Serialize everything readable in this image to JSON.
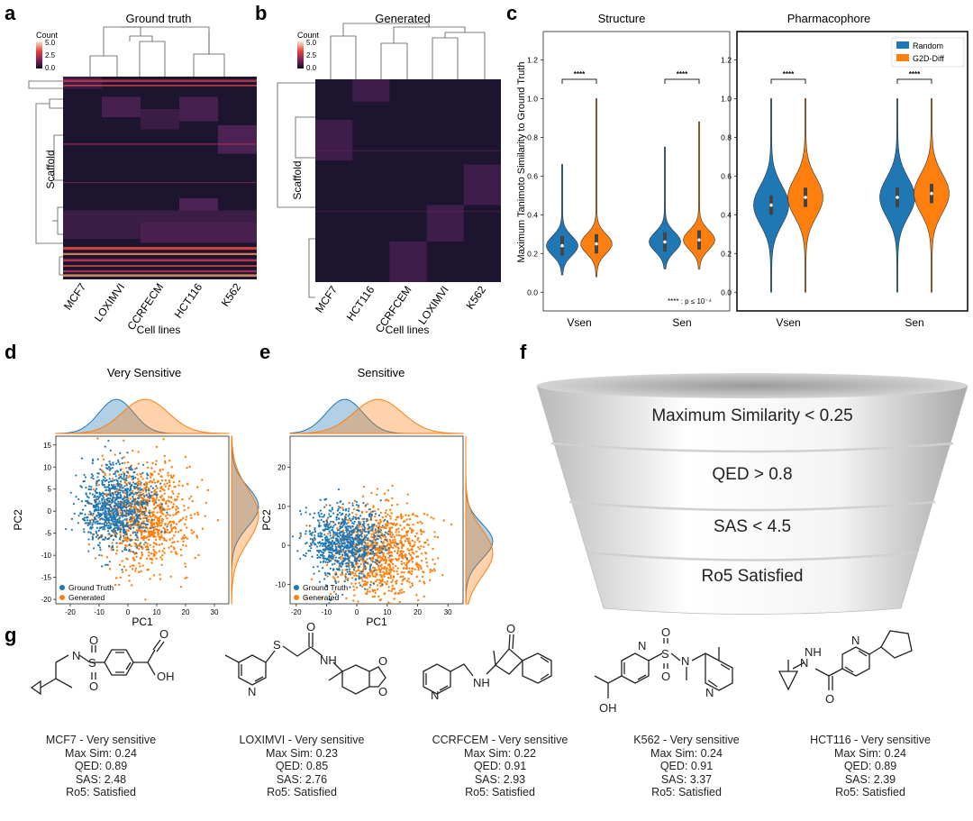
{
  "panel_letters": {
    "a": "a",
    "b": "b",
    "c": "c",
    "d": "d",
    "e": "e",
    "f": "f",
    "g": "g"
  },
  "colors": {
    "heat_dark": "#1d1530",
    "heat_mid": "#4a2050",
    "heat_hot": "#e8433a",
    "random": "#1f77b4",
    "g2d": "#ff7f0e",
    "gt_point": "#1f77b4",
    "gen_point": "#ff7f0e"
  },
  "heatmap_a": {
    "title": "Ground truth",
    "xlabel": "Cell lines",
    "ylabel": "Scaffold",
    "cell_lines": [
      "MCF7",
      "LOXIMVI",
      "CCRFECM",
      "HCT116",
      "K562"
    ],
    "colorbar": {
      "label": "Count",
      "ticks": [
        "5.0",
        "2.5",
        "0.0"
      ]
    }
  },
  "heatmap_b": {
    "title": "Generated",
    "xlabel": "Cell lines",
    "ylabel": "Scaffold",
    "cell_lines": [
      "MCF7",
      "HCT116",
      "CCRFCEM",
      "LOXIMVI",
      "K562"
    ],
    "colorbar": {
      "label": "Count",
      "ticks": [
        "5.0",
        "2.5",
        "0.0"
      ]
    }
  },
  "chart_data": [
    {
      "type": "violin",
      "title": "Structure",
      "ylabel": "Maximum Tanimoto Similarity to Ground Truth",
      "categories": [
        "Vsen",
        "Sen"
      ],
      "yticks": [
        "0.0",
        "0.2",
        "0.4",
        "0.6",
        "0.8",
        "1.0",
        "1.2"
      ],
      "ylim": [
        -0.05,
        1.3
      ],
      "series": [
        {
          "name": "Random",
          "medians": [
            0.24,
            0.26
          ],
          "min": [
            0.09,
            0.12
          ],
          "max": [
            0.66,
            0.75
          ]
        },
        {
          "name": "G2D-Diff",
          "medians": [
            0.25,
            0.27
          ],
          "min": [
            0.08,
            0.12
          ],
          "max": [
            1.0,
            0.88
          ]
        }
      ],
      "significance": [
        "****",
        "****"
      ],
      "annotation": "**** : p ≤ 10⁻⁴"
    },
    {
      "type": "violin",
      "title": "Pharmacophore",
      "categories": [
        "Vsen",
        "Sen"
      ],
      "yticks": [
        "0.0",
        "0.2",
        "0.4",
        "0.6",
        "0.8",
        "1.0",
        "1.2"
      ],
      "ylim": [
        -0.05,
        1.3
      ],
      "series": [
        {
          "name": "Random",
          "medians": [
            0.45,
            0.49
          ],
          "min": [
            0.0,
            0.0
          ],
          "max": [
            1.0,
            1.0
          ]
        },
        {
          "name": "G2D-Diff",
          "medians": [
            0.49,
            0.51
          ],
          "min": [
            0.0,
            0.0
          ],
          "max": [
            1.0,
            1.0
          ]
        }
      ],
      "significance": [
        "****",
        "****"
      ],
      "legend": [
        "Random",
        "G2D-Diff"
      ]
    },
    {
      "type": "scatter",
      "title": "Very Sensitive",
      "xlabel": "PC1",
      "ylabel": "PC2",
      "xticks": [
        "-20",
        "-10",
        "0",
        "10",
        "20",
        "30"
      ],
      "yticks": [
        "-20",
        "-15",
        "-10",
        "-5",
        "0",
        "5",
        "10",
        "15"
      ],
      "xlim": [
        -25,
        35
      ],
      "ylim": [
        -21,
        17
      ],
      "legend": [
        "Ground Truth",
        "Generated"
      ]
    },
    {
      "type": "scatter",
      "title": "Sensitive",
      "xlabel": "PC1",
      "ylabel": "PC2",
      "xticks": [
        "-20",
        "-10",
        "0",
        "10",
        "20",
        "30"
      ],
      "yticks": [
        "-10",
        "0",
        "10",
        "20"
      ],
      "xlim": [
        -22,
        35
      ],
      "ylim": [
        -15,
        28
      ],
      "legend": [
        "Ground Truth",
        "Generated"
      ]
    }
  ],
  "funnel": {
    "levels": [
      {
        "metric": "Maximum Similarity",
        "op": "<",
        "value": "0.25"
      },
      {
        "metric": "QED",
        "op": ">",
        "value": "0.8"
      },
      {
        "metric": "SAS",
        "op": "<",
        "value": "4.5"
      },
      {
        "metric": "Ro5 Satisfied",
        "op": "",
        "value": ""
      }
    ]
  },
  "molecules": [
    {
      "title": "MCF7 - Very sensitive",
      "max_sim": "Max Sim: 0.24",
      "qed": "QED: 0.89",
      "sas": "SAS: 2.48",
      "ro5": "Ro5: Satisfied"
    },
    {
      "title": "LOXIMVI - Very sensitive",
      "max_sim": "Max Sim: 0.23",
      "qed": "QED: 0.85",
      "sas": "SAS: 2.76",
      "ro5": "Ro5: Satisfied"
    },
    {
      "title": "CCRFCEM - Very sensitive",
      "max_sim": "Max Sim: 0.22",
      "qed": "QED: 0.91",
      "sas": "SAS: 2.93",
      "ro5": "Ro5: Satisfied"
    },
    {
      "title": "K562 - Very sensitive",
      "max_sim": "Max Sim: 0.24",
      "qed": "QED: 0.91",
      "sas": "SAS: 3.37",
      "ro5": "Ro5: Satisfied"
    },
    {
      "title": "HCT116 - Very sensitive",
      "max_sim": "Max Sim: 0.24",
      "qed": "QED: 0.89",
      "sas": "SAS: 2.39",
      "ro5": "Ro5: Satisfied"
    }
  ],
  "atoms": {
    "N": "N",
    "S": "S",
    "O": "O",
    "OH": "OH",
    "NH": "NH"
  }
}
